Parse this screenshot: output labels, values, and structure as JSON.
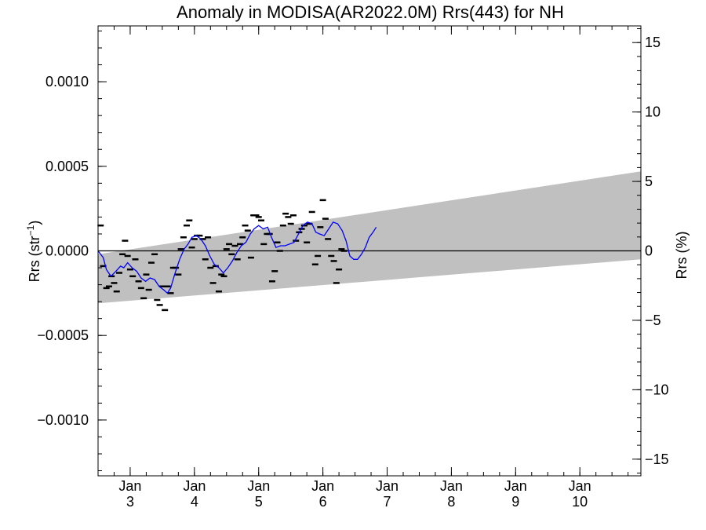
{
  "chart_data": {
    "type": "line",
    "title": "Anomaly in MODISA(AR2022.0M) Rrs(443) for NH",
    "ylabel_left_main": "Rrs (str",
    "ylabel_left_sup": "−1",
    "ylabel_left_close": ")",
    "ylabel_right": "Rrs (%)",
    "x_range": [
      2002.5,
      2010.95
    ],
    "y_range": [
      -0.00133,
      0.00133
    ],
    "y2_range": [
      -16.2,
      16.2
    ],
    "x_ticks": [
      {
        "x": 2003.0,
        "top": "Jan",
        "bottom": "3"
      },
      {
        "x": 2004.0,
        "top": "Jan",
        "bottom": "4"
      },
      {
        "x": 2005.0,
        "top": "Jan",
        "bottom": "5"
      },
      {
        "x": 2006.0,
        "top": "Jan",
        "bottom": "6"
      },
      {
        "x": 2007.0,
        "top": "Jan",
        "bottom": "7"
      },
      {
        "x": 2008.0,
        "top": "Jan",
        "bottom": "8"
      },
      {
        "x": 2009.0,
        "top": "Jan",
        "bottom": "9"
      },
      {
        "x": 2010.0,
        "top": "Jan",
        "bottom": "10"
      }
    ],
    "y_ticks": [
      {
        "value": 0.001,
        "label": "0.0010"
      },
      {
        "value": 0.0005,
        "label": "0.0005"
      },
      {
        "value": 0.0,
        "label": "0.0000"
      },
      {
        "value": -0.0005,
        "label": "−0.0005"
      },
      {
        "value": -0.001,
        "label": "−0.0010"
      }
    ],
    "y2_ticks": [
      {
        "value": 15,
        "label": "15"
      },
      {
        "value": 10,
        "label": "10"
      },
      {
        "value": 5,
        "label": "5"
      },
      {
        "value": 0,
        "label": "0"
      },
      {
        "value": -5,
        "label": "−5"
      },
      {
        "value": -10,
        "label": "−10"
      },
      {
        "value": -15,
        "label": "−15"
      }
    ],
    "band": {
      "upper": [
        [
          2002.5,
          -2e-05
        ],
        [
          2010.95,
          0.00047
        ]
      ],
      "lower": [
        [
          2002.5,
          -0.00031
        ],
        [
          2010.95,
          -5e-05
        ]
      ],
      "color": "#c0c0c0"
    },
    "zero_line": 0,
    "series": [
      {
        "kind": "markers",
        "color": "#000000",
        "points": [
          [
            2002.54,
            0.00015
          ],
          [
            2002.58,
            -9e-05
          ],
          [
            2002.63,
            -0.00022
          ],
          [
            2002.67,
            -0.00021
          ],
          [
            2002.71,
            -0.00015
          ],
          [
            2002.75,
            -0.00019
          ],
          [
            2002.79,
            -0.00024
          ],
          [
            2002.83,
            -0.00013
          ],
          [
            2002.88,
            -2e-05
          ],
          [
            2002.92,
            6e-05
          ],
          [
            2002.96,
            -3e-05
          ],
          [
            2003.0,
            -0.00011
          ],
          [
            2003.04,
            -0.00015
          ],
          [
            2003.08,
            -5e-05
          ],
          [
            2003.13,
            -0.00018
          ],
          [
            2003.17,
            -0.00022
          ],
          [
            2003.21,
            -0.00028
          ],
          [
            2003.25,
            -0.00014
          ],
          [
            2003.29,
            -0.00023
          ],
          [
            2003.33,
            -7e-05
          ],
          [
            2003.38,
            -2e-05
          ],
          [
            2003.42,
            -0.00029
          ],
          [
            2003.46,
            -0.00032
          ],
          [
            2003.5,
            -0.00021
          ],
          [
            2003.54,
            -0.00035
          ],
          [
            2003.58,
            -0.00021
          ],
          [
            2003.63,
            -0.00025
          ],
          [
            2003.67,
            -0.0001
          ],
          [
            2003.71,
            -0.0001
          ],
          [
            2003.75,
            -0.00014
          ],
          [
            2003.79,
            1e-05
          ],
          [
            2003.83,
            8e-05
          ],
          [
            2003.88,
            0.00015
          ],
          [
            2003.92,
            0.00018
          ],
          [
            2003.96,
            2e-05
          ],
          [
            2004.0,
            7e-05
          ],
          [
            2004.04,
            9e-05
          ],
          [
            2004.08,
            9e-05
          ],
          [
            2004.13,
            7e-05
          ],
          [
            2004.17,
            -5e-05
          ],
          [
            2004.21,
            8e-05
          ],
          [
            2004.25,
            -0.0001
          ],
          [
            2004.29,
            -0.00019
          ],
          [
            2004.33,
            -9e-05
          ],
          [
            2004.38,
            -0.00024
          ],
          [
            2004.42,
            -0.00014
          ],
          [
            2004.46,
            -0.00015
          ],
          [
            2004.5,
            1e-05
          ],
          [
            2004.54,
            4e-05
          ],
          [
            2004.58,
            -2e-05
          ],
          [
            2004.63,
            3e-05
          ],
          [
            2004.67,
            -5e-05
          ],
          [
            2004.71,
            4e-05
          ],
          [
            2004.75,
            8e-05
          ],
          [
            2004.79,
            0.00015
          ],
          [
            2004.83,
            0.00012
          ],
          [
            2004.88,
            -4e-05
          ],
          [
            2004.92,
            0.00021
          ],
          [
            2004.96,
            0.00021
          ],
          [
            2005.0,
            0.0002
          ],
          [
            2005.04,
            0.00018
          ],
          [
            2005.08,
            4e-05
          ],
          [
            2005.13,
            0.0001
          ],
          [
            2005.17,
            0.0001
          ],
          [
            2005.21,
            -0.00018
          ],
          [
            2005.25,
            -0.00012
          ],
          [
            2005.29,
            5e-05
          ],
          [
            2005.33,
            0.0
          ],
          [
            2005.38,
            0.00015
          ],
          [
            2005.42,
            0.00022
          ],
          [
            2005.46,
            0.0002
          ],
          [
            2005.5,
            0.00016
          ],
          [
            2005.54,
            0.00021
          ],
          [
            2005.58,
            6e-05
          ],
          [
            2005.63,
            0.00011
          ],
          [
            2005.67,
            0.00013
          ],
          [
            2005.71,
            0.00015
          ],
          [
            2005.75,
            5e-05
          ],
          [
            2005.79,
            0.00016
          ],
          [
            2005.83,
            0.00023
          ],
          [
            2005.88,
            -8e-05
          ],
          [
            2005.92,
            -3e-05
          ],
          [
            2005.96,
            0.00014
          ],
          [
            2006.0,
            0.0003
          ],
          [
            2006.04,
            0.00019
          ],
          [
            2006.08,
            7e-05
          ],
          [
            2006.13,
            -3e-05
          ],
          [
            2006.17,
            -6e-05
          ],
          [
            2006.21,
            -0.00019
          ],
          [
            2006.25,
            -0.00011
          ],
          [
            2006.29,
            1e-05
          ],
          [
            2006.33,
            0.0
          ]
        ]
      },
      {
        "kind": "line",
        "color": "#0000ff",
        "points": [
          [
            2002.5,
            0.0
          ],
          [
            2002.58,
            -4e-05
          ],
          [
            2002.63,
            -0.00011
          ],
          [
            2002.7,
            -0.00015
          ],
          [
            2002.78,
            -0.00012
          ],
          [
            2002.85,
            -9e-05
          ],
          [
            2002.9,
            -0.0001
          ],
          [
            2002.96,
            -7e-05
          ],
          [
            2003.03,
            -0.0001
          ],
          [
            2003.1,
            -0.00012
          ],
          [
            2003.17,
            -0.00016
          ],
          [
            2003.24,
            -0.00018
          ],
          [
            2003.31,
            -0.00016
          ],
          [
            2003.38,
            -0.00017
          ],
          [
            2003.45,
            -0.00021
          ],
          [
            2003.52,
            -0.00023
          ],
          [
            2003.58,
            -0.00025
          ],
          [
            2003.63,
            -0.00022
          ],
          [
            2003.7,
            -0.00013
          ],
          [
            2003.77,
            -5e-05
          ],
          [
            2003.84,
            1e-05
          ],
          [
            2003.9,
            4e-05
          ],
          [
            2003.96,
            8e-05
          ],
          [
            2004.03,
            9e-05
          ],
          [
            2004.1,
            7e-05
          ],
          [
            2004.17,
            3e-05
          ],
          [
            2004.24,
            -3e-05
          ],
          [
            2004.31,
            -8e-05
          ],
          [
            2004.38,
            -0.0001
          ],
          [
            2004.45,
            -0.00013
          ],
          [
            2004.52,
            -0.0001
          ],
          [
            2004.59,
            -6e-05
          ],
          [
            2004.66,
            -1e-05
          ],
          [
            2004.73,
            3e-05
          ],
          [
            2004.8,
            5e-05
          ],
          [
            2004.87,
            0.0001
          ],
          [
            2004.93,
            0.00013
          ],
          [
            2005.0,
            0.00015
          ],
          [
            2005.07,
            0.00013
          ],
          [
            2005.14,
            0.00014
          ],
          [
            2005.2,
            8e-05
          ],
          [
            2005.27,
            2e-05
          ],
          [
            2005.34,
            3e-05
          ],
          [
            2005.41,
            3e-05
          ],
          [
            2005.48,
            4e-05
          ],
          [
            2005.55,
            5e-05
          ],
          [
            2005.62,
            0.0001
          ],
          [
            2005.69,
            0.00015
          ],
          [
            2005.76,
            0.00017
          ],
          [
            2005.83,
            0.00016
          ],
          [
            2005.89,
            0.00011
          ],
          [
            2005.95,
            0.0001
          ],
          [
            2006.02,
            9e-05
          ],
          [
            2006.09,
            0.00013
          ],
          [
            2006.16,
            0.00017
          ],
          [
            2006.23,
            0.00016
          ],
          [
            2006.3,
            0.00012
          ],
          [
            2006.36,
            6e-05
          ],
          [
            2006.42,
            -3e-05
          ],
          [
            2006.48,
            -5e-05
          ],
          [
            2006.54,
            -5e-05
          ],
          [
            2006.6,
            -2e-05
          ],
          [
            2006.66,
            2e-05
          ],
          [
            2006.72,
            8e-05
          ],
          [
            2006.78,
            0.00011
          ],
          [
            2006.83,
            0.00014
          ]
        ]
      }
    ]
  }
}
